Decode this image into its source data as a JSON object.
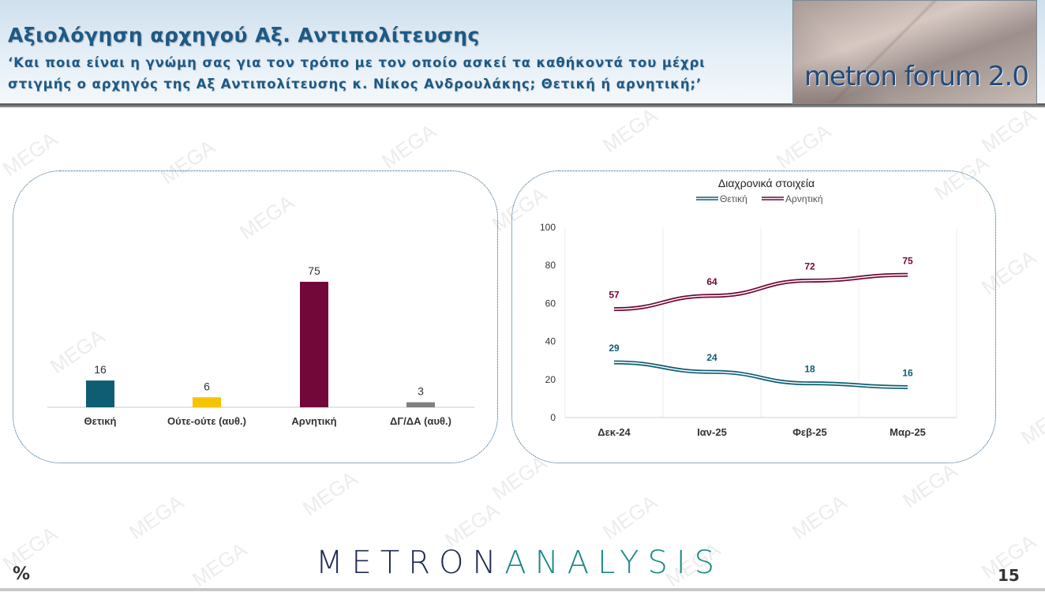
{
  "header": {
    "title": "Αξιολόγηση αρχηγού Αξ. Αντιπολίτευσης",
    "subtitle": "‘Και ποια είναι η γνώμη σας για τον τρόπο με τον οποίο ασκεί τα καθήκοντά του μέχρι στιγμής ο αρχηγός της Αξ Αντιπολίτευσης κ. Νίκος Ανδρουλάκης; Θετική ή αρνητική;’",
    "logo": "metron forum 2.0"
  },
  "footer": {
    "brand_part1": "METRON",
    "brand_part2": "ANALYSIS",
    "unit": "%",
    "page": "15"
  },
  "watermark": "MEGA",
  "colors": {
    "positive": "#0e5d73",
    "neutral": "#f5c400",
    "negative": "#72073a",
    "dk": "#808080",
    "header_text": "#1d5a86"
  },
  "chart_data": [
    {
      "type": "bar",
      "categories": [
        "Θετική",
        "Ούτε-ούτε (αυθ.)",
        "Αρνητική",
        "ΔΓ/ΔΑ (αυθ.)"
      ],
      "values": [
        16,
        6,
        75,
        3
      ]
    },
    {
      "type": "line",
      "title": "Διαχρονικά στοιχεία",
      "categories": [
        "Δεκ-24",
        "Ιαν-25",
        "Φεβ-25",
        "Μαρ-25"
      ],
      "series": [
        {
          "name": "Θετική",
          "values": [
            29,
            24,
            18,
            16
          ]
        },
        {
          "name": "Αρνητική",
          "values": [
            57,
            64,
            72,
            75
          ]
        }
      ],
      "ylim": [
        0,
        100
      ],
      "yticks": [
        "0",
        "20",
        "40",
        "60",
        "80",
        "100"
      ],
      "grid": true,
      "legend": "top"
    }
  ]
}
